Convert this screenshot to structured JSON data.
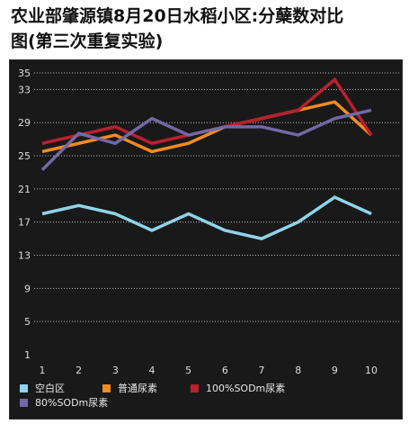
{
  "chart_data": {
    "type": "line",
    "title": "农业部肇源镇8月20日水稻小区:分蘖数对比\n图(第三次重复实验)",
    "x": [
      1,
      2,
      3,
      4,
      5,
      6,
      7,
      8,
      9,
      10
    ],
    "ylim": [
      1,
      35
    ],
    "yticks": [
      1,
      5,
      9,
      13,
      17,
      21,
      25,
      29,
      33,
      35
    ],
    "grid": true,
    "legend_position": "bottom",
    "series": [
      {
        "name": "空白区",
        "color": "#8fd4ea",
        "values": [
          18,
          19,
          18,
          16,
          18,
          16,
          15,
          17,
          20,
          18
        ]
      },
      {
        "name": "普通尿素",
        "color": "#f28c1f",
        "values": [
          25.5,
          26.5,
          27.5,
          25.5,
          26.5,
          28.5,
          29.5,
          30.5,
          31.5,
          27.5
        ]
      },
      {
        "name": "100%SODm尿素",
        "color": "#b8202e",
        "values": [
          26.5,
          27.5,
          28.5,
          26.5,
          27.5,
          28.5,
          29.5,
          30.5,
          34.2,
          27.5
        ]
      },
      {
        "name": "80%SODm尿素",
        "color": "#7268a6",
        "values": [
          23.3,
          27.7,
          26.5,
          29.5,
          27.5,
          28.5,
          28.5,
          27.5,
          29.5,
          30.5
        ]
      }
    ]
  }
}
